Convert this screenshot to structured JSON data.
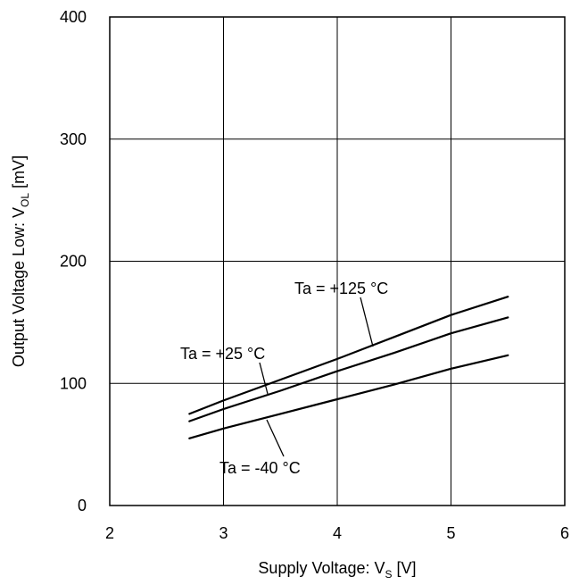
{
  "chart_data": {
    "type": "line",
    "xlabel": {
      "main": "Supply Voltage: V",
      "sub": "S",
      "unit": " [V]"
    },
    "ylabel": {
      "main": "Output Voltage Low: V",
      "sub": "OL",
      "unit": " [mV]"
    },
    "xlim": [
      2,
      6
    ],
    "ylim": [
      0,
      400
    ],
    "xticks": [
      2,
      3,
      4,
      5,
      6
    ],
    "yticks": [
      0,
      100,
      200,
      300,
      400
    ],
    "grid": true,
    "series": [
      {
        "name": "Ta = +125 °C",
        "x": [
          2.7,
          3.0,
          3.5,
          4.0,
          4.5,
          5.0,
          5.5
        ],
        "y": [
          75,
          86,
          103,
          120,
          138,
          156,
          171
        ]
      },
      {
        "name": "Ta = +25 °C",
        "x": [
          2.7,
          3.0,
          3.5,
          4.0,
          4.5,
          5.0,
          5.5
        ],
        "y": [
          69,
          79,
          94,
          110,
          125,
          141,
          154
        ]
      },
      {
        "name": "Ta = -40 °C",
        "x": [
          2.7,
          3.0,
          3.5,
          4.0,
          4.5,
          5.0,
          5.5
        ],
        "y": [
          55,
          63,
          75,
          87,
          99,
          112,
          123
        ]
      }
    ]
  }
}
